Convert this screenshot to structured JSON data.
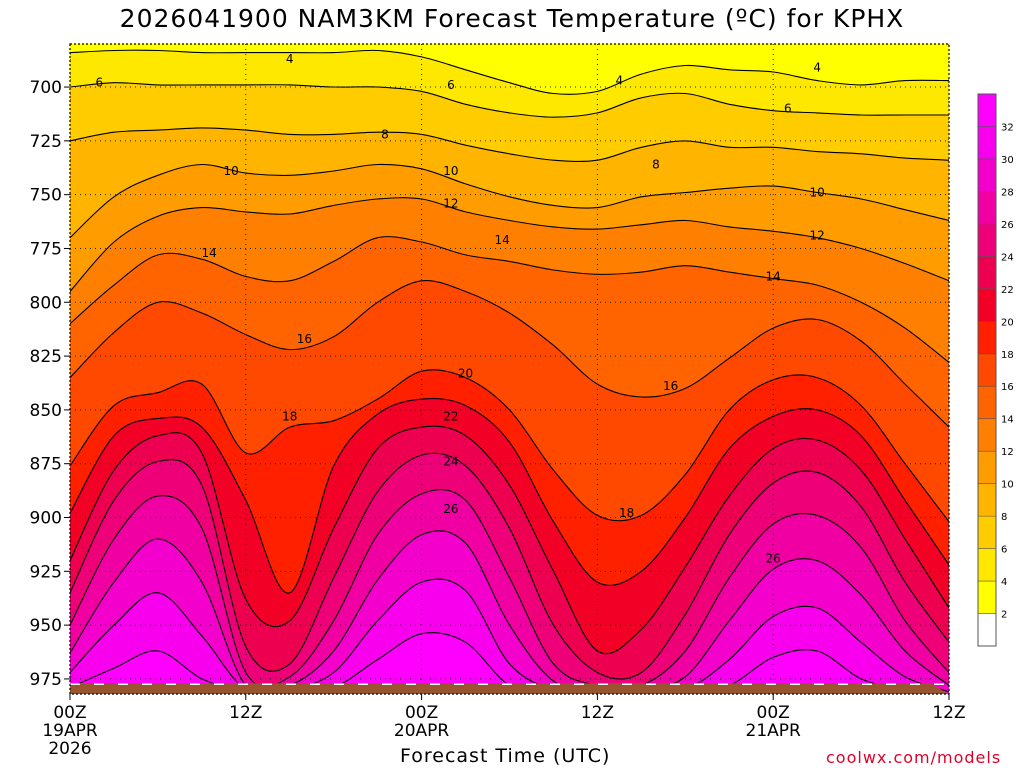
{
  "chart_data": {
    "type": "time-height contour",
    "title": "2026041900 NAM3KM Forecast Temperature (ºC) for KPHX",
    "xlabel": "Forecast Time (UTC)",
    "ylabel": "",
    "credit": "coolwx.com/models",
    "x_ticks": [
      {
        "label": "00Z",
        "sub1": "19APR",
        "sub2": "2026",
        "hour": 0
      },
      {
        "label": "12Z",
        "sub1": "",
        "sub2": "",
        "hour": 12
      },
      {
        "label": "00Z",
        "sub1": "20APR",
        "sub2": "",
        "hour": 24
      },
      {
        "label": "12Z",
        "sub1": "",
        "sub2": "",
        "hour": 36
      },
      {
        "label": "00Z",
        "sub1": "21APR",
        "sub2": "",
        "hour": 48
      },
      {
        "label": "12Z",
        "sub1": "",
        "sub2": "",
        "hour": 60
      }
    ],
    "xlim": [
      0,
      60
    ],
    "y_ticks": [
      700,
      725,
      750,
      775,
      800,
      825,
      850,
      875,
      900,
      925,
      950,
      975
    ],
    "ylim": [
      680,
      982
    ],
    "ground_color": "#9a5530",
    "colorbar": {
      "levels": [
        2,
        4,
        6,
        8,
        10,
        12,
        14,
        16,
        18,
        20,
        22,
        24,
        26,
        28,
        30,
        32
      ],
      "colors": [
        "#ffffff",
        "#ffff00",
        "#ffe800",
        "#ffcc00",
        "#ffb400",
        "#ff9c00",
        "#ff8000",
        "#ff6400",
        "#ff4800",
        "#ff2000",
        "#f20026",
        "#ee0050",
        "#ee0078",
        "#f000a2",
        "#f400cc",
        "#f800ee",
        "#ff00ff"
      ]
    },
    "bands": [
      {
        "level": 4,
        "pressure": [
          684,
          683,
          683,
          684,
          684,
          684,
          684,
          683,
          686,
          692,
          698,
          703,
          702,
          694,
          690,
          692,
          693,
          697,
          699,
          697,
          697
        ]
      },
      {
        "level": 6,
        "pressure": [
          700,
          698,
          699,
          699,
          699,
          699,
          700,
          700,
          702,
          708,
          712,
          714,
          712,
          705,
          703,
          708,
          711,
          712,
          713,
          713,
          713
        ]
      },
      {
        "level": 8,
        "pressure": [
          725,
          721,
          720,
          719,
          720,
          722,
          722,
          721,
          722,
          727,
          731,
          734,
          734,
          728,
          725,
          728,
          728,
          730,
          731,
          733,
          734
        ]
      },
      {
        "level": 10,
        "pressure": [
          770,
          751,
          741,
          736,
          740,
          741,
          739,
          736,
          738,
          745,
          751,
          755,
          756,
          751,
          749,
          747,
          746,
          749,
          752,
          757,
          762
        ]
      },
      {
        "level": 12,
        "pressure": [
          795,
          772,
          760,
          756,
          758,
          759,
          755,
          752,
          752,
          758,
          762,
          765,
          766,
          764,
          762,
          765,
          767,
          770,
          775,
          782,
          790
        ]
      },
      {
        "level": 14,
        "pressure": [
          810,
          792,
          778,
          780,
          788,
          790,
          781,
          770,
          772,
          778,
          781,
          785,
          787,
          786,
          783,
          786,
          789,
          792,
          800,
          812,
          828
        ]
      },
      {
        "level": 16,
        "pressure": [
          835,
          814,
          800,
          805,
          815,
          822,
          816,
          800,
          790,
          795,
          805,
          820,
          838,
          844,
          840,
          826,
          812,
          808,
          818,
          838,
          858
        ]
      },
      {
        "level": 18,
        "pressure": [
          876,
          848,
          842,
          838,
          870,
          858,
          855,
          845,
          832,
          835,
          850,
          878,
          899,
          899,
          880,
          850,
          836,
          835,
          848,
          875,
          902
        ]
      },
      {
        "level": 20,
        "pressure": [
          898,
          862,
          854,
          858,
          892,
          935,
          876,
          852,
          845,
          848,
          865,
          902,
          930,
          925,
          900,
          868,
          853,
          850,
          862,
          892,
          922
        ]
      },
      {
        "level": 22,
        "pressure": [
          920,
          878,
          862,
          870,
          938,
          948,
          905,
          868,
          858,
          862,
          885,
          925,
          962,
          952,
          923,
          890,
          868,
          864,
          878,
          910,
          942
        ]
      },
      {
        "level": 24,
        "pressure": [
          935,
          892,
          874,
          885,
          960,
          968,
          928,
          888,
          871,
          876,
          905,
          950,
          972,
          972,
          945,
          908,
          884,
          879,
          895,
          930,
          958
        ]
      },
      {
        "level": 26,
        "pressure": [
          950,
          910,
          890,
          905,
          972,
          974,
          948,
          908,
          889,
          892,
          928,
          968,
          978,
          978,
          962,
          928,
          903,
          899,
          914,
          948,
          972
        ]
      },
      {
        "level": 28,
        "pressure": [
          963,
          930,
          910,
          930,
          978,
          978,
          962,
          929,
          908,
          912,
          950,
          976,
          980,
          980,
          974,
          948,
          924,
          920,
          936,
          962,
          978
        ]
      },
      {
        "level": 30,
        "pressure": [
          972,
          950,
          935,
          955,
          980,
          980,
          972,
          948,
          930,
          934,
          968,
          980,
          981,
          981,
          980,
          966,
          946,
          942,
          958,
          974,
          981
        ]
      },
      {
        "level": 32,
        "pressure": [
          979,
          970,
          962,
          975,
          981,
          981,
          979,
          966,
          954,
          958,
          978,
          981,
          982,
          982,
          981,
          978,
          965,
          962,
          975,
          980,
          982
        ]
      }
    ],
    "contour_labels": [
      {
        "text": "4",
        "hour": 15.0,
        "pressure": 687
      },
      {
        "text": "4",
        "hour": 37.5,
        "pressure": 697
      },
      {
        "text": "4",
        "hour": 51.0,
        "pressure": 691
      },
      {
        "text": "6",
        "hour": 2.0,
        "pressure": 698
      },
      {
        "text": "6",
        "hour": 26.0,
        "pressure": 699
      },
      {
        "text": "6",
        "hour": 49.0,
        "pressure": 710
      },
      {
        "text": "8",
        "hour": 21.5,
        "pressure": 722
      },
      {
        "text": "8",
        "hour": 40.0,
        "pressure": 736
      },
      {
        "text": "10",
        "hour": 11.0,
        "pressure": 739
      },
      {
        "text": "10",
        "hour": 26.0,
        "pressure": 739
      },
      {
        "text": "10",
        "hour": 51.0,
        "pressure": 749
      },
      {
        "text": "12",
        "hour": 26.0,
        "pressure": 754
      },
      {
        "text": "12",
        "hour": 51.0,
        "pressure": 769
      },
      {
        "text": "14",
        "hour": 9.5,
        "pressure": 777
      },
      {
        "text": "14",
        "hour": 29.5,
        "pressure": 771
      },
      {
        "text": "14",
        "hour": 48.0,
        "pressure": 788
      },
      {
        "text": "16",
        "hour": 16.0,
        "pressure": 817
      },
      {
        "text": "16",
        "hour": 41.0,
        "pressure": 839
      },
      {
        "text": "18",
        "hour": 15.0,
        "pressure": 853
      },
      {
        "text": "18",
        "hour": 38.0,
        "pressure": 898
      },
      {
        "text": "20",
        "hour": 27.0,
        "pressure": 833
      },
      {
        "text": "22",
        "hour": 26.0,
        "pressure": 853
      },
      {
        "text": "24",
        "hour": 26.0,
        "pressure": 874
      },
      {
        "text": "26",
        "hour": 26.0,
        "pressure": 896
      },
      {
        "text": "26",
        "hour": 48.0,
        "pressure": 919
      }
    ]
  }
}
